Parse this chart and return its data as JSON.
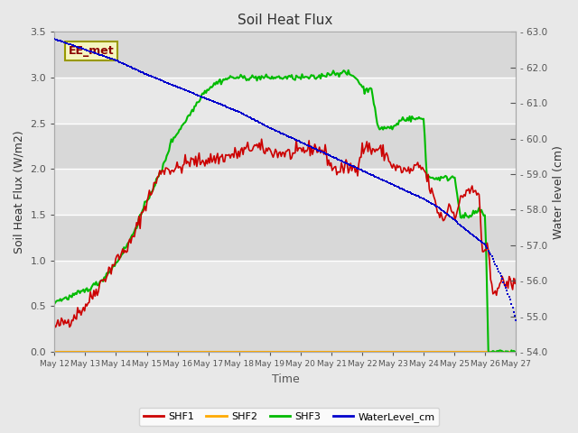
{
  "title": "Soil Heat Flux",
  "ylabel_left": "Soil Heat Flux (W/m2)",
  "ylabel_right": "Water level (cm)",
  "xlabel": "Time",
  "annotation": "EE_met",
  "ylim_left": [
    0.0,
    3.5
  ],
  "ylim_right": [
    54.0,
    63.0
  ],
  "xlim": [
    0,
    15
  ],
  "xtick_labels": [
    "May 12",
    "May 13",
    "May 14",
    "May 15",
    "May 16",
    "May 17",
    "May 18",
    "May 19",
    "May 20",
    "May 21",
    "May 22",
    "May 23",
    "May 24",
    "May 25",
    "May 26",
    "May 27"
  ],
  "bg_light": "#e8e8e8",
  "bg_dark": "#d0d0d0",
  "colors": {
    "SHF1": "#cc0000",
    "SHF2": "#ffaa00",
    "SHF3": "#00bb00",
    "WaterLevel": "#0000cc"
  },
  "shf1_keypoints": [
    [
      0,
      0.27
    ],
    [
      0.5,
      0.35
    ],
    [
      1,
      0.5
    ],
    [
      1.3,
      0.65
    ],
    [
      1.5,
      0.75
    ],
    [
      2,
      1.0
    ],
    [
      2.5,
      1.2
    ],
    [
      3,
      1.65
    ],
    [
      3.5,
      2.0
    ],
    [
      4,
      2.0
    ],
    [
      4.3,
      2.07
    ],
    [
      5,
      2.1
    ],
    [
      5.5,
      2.13
    ],
    [
      6,
      2.17
    ],
    [
      6.3,
      2.22
    ],
    [
      6.5,
      2.25
    ],
    [
      6.7,
      2.22
    ],
    [
      7,
      2.2
    ],
    [
      7.3,
      2.17
    ],
    [
      7.5,
      2.18
    ],
    [
      7.8,
      2.15
    ],
    [
      8,
      2.2
    ],
    [
      8.3,
      2.22
    ],
    [
      8.5,
      2.23
    ],
    [
      8.8,
      2.18
    ],
    [
      9,
      2.02
    ],
    [
      9.2,
      1.98
    ],
    [
      9.5,
      2.02
    ],
    [
      9.8,
      2.0
    ],
    [
      10,
      2.22
    ],
    [
      10.2,
      2.25
    ],
    [
      10.3,
      2.2
    ],
    [
      10.5,
      2.22
    ],
    [
      10.8,
      2.15
    ],
    [
      11,
      2.02
    ],
    [
      11.2,
      2.0
    ],
    [
      11.5,
      1.97
    ],
    [
      11.8,
      2.02
    ],
    [
      12,
      2.0
    ],
    [
      12.2,
      1.8
    ],
    [
      12.5,
      1.5
    ],
    [
      12.7,
      1.45
    ],
    [
      12.8,
      1.62
    ],
    [
      13.0,
      1.5
    ],
    [
      13.2,
      1.65
    ],
    [
      13.4,
      1.78
    ],
    [
      13.6,
      1.75
    ],
    [
      13.8,
      1.72
    ],
    [
      13.9,
      1.1
    ],
    [
      14.0,
      1.05
    ],
    [
      14.1,
      1.14
    ],
    [
      14.2,
      0.65
    ],
    [
      14.5,
      0.75
    ],
    [
      14.8,
      0.75
    ],
    [
      15,
      0.75
    ]
  ],
  "shf3_keypoints": [
    [
      0,
      0.55
    ],
    [
      0.5,
      0.6
    ],
    [
      1,
      0.67
    ],
    [
      1.5,
      0.77
    ],
    [
      2,
      0.97
    ],
    [
      2.5,
      1.25
    ],
    [
      3,
      1.65
    ],
    [
      3.5,
      2.0
    ],
    [
      3.8,
      2.3
    ],
    [
      4,
      2.4
    ],
    [
      4.2,
      2.5
    ],
    [
      4.5,
      2.65
    ],
    [
      4.8,
      2.82
    ],
    [
      5,
      2.88
    ],
    [
      5.3,
      2.95
    ],
    [
      5.7,
      3.0
    ],
    [
      6,
      3.0
    ],
    [
      7,
      3.0
    ],
    [
      8,
      3.0
    ],
    [
      8.5,
      3.0
    ],
    [
      9,
      3.05
    ],
    [
      9.3,
      3.05
    ],
    [
      9.5,
      3.05
    ],
    [
      9.8,
      3.0
    ],
    [
      10,
      2.9
    ],
    [
      10.1,
      2.85
    ],
    [
      10.3,
      2.9
    ],
    [
      10.5,
      2.45
    ],
    [
      10.7,
      2.45
    ],
    [
      11,
      2.45
    ],
    [
      11.3,
      2.55
    ],
    [
      11.5,
      2.55
    ],
    [
      11.8,
      2.55
    ],
    [
      12,
      2.55
    ],
    [
      12.1,
      1.92
    ],
    [
      12.3,
      1.9
    ],
    [
      12.5,
      1.9
    ],
    [
      12.8,
      1.9
    ],
    [
      13.0,
      1.92
    ],
    [
      13.2,
      1.48
    ],
    [
      13.5,
      1.48
    ],
    [
      13.8,
      1.55
    ],
    [
      14,
      1.48
    ],
    [
      14.1,
      0.0
    ],
    [
      15,
      0.0
    ]
  ],
  "wl_keypoints": [
    [
      0,
      62.8
    ],
    [
      1,
      62.5
    ],
    [
      2,
      62.2
    ],
    [
      3,
      61.8
    ],
    [
      4,
      61.45
    ],
    [
      5,
      61.1
    ],
    [
      6,
      60.75
    ],
    [
      7,
      60.3
    ],
    [
      8,
      59.9
    ],
    [
      9,
      59.5
    ],
    [
      10,
      59.1
    ],
    [
      11,
      58.7
    ],
    [
      12,
      58.3
    ],
    [
      12.5,
      58.05
    ],
    [
      13,
      57.7
    ],
    [
      13.5,
      57.35
    ],
    [
      14,
      57.0
    ],
    [
      14.2,
      56.7
    ],
    [
      14.5,
      56.15
    ],
    [
      14.8,
      55.5
    ],
    [
      15,
      54.9
    ],
    [
      15.5,
      54.55
    ]
  ],
  "shf2_y": 0.0
}
